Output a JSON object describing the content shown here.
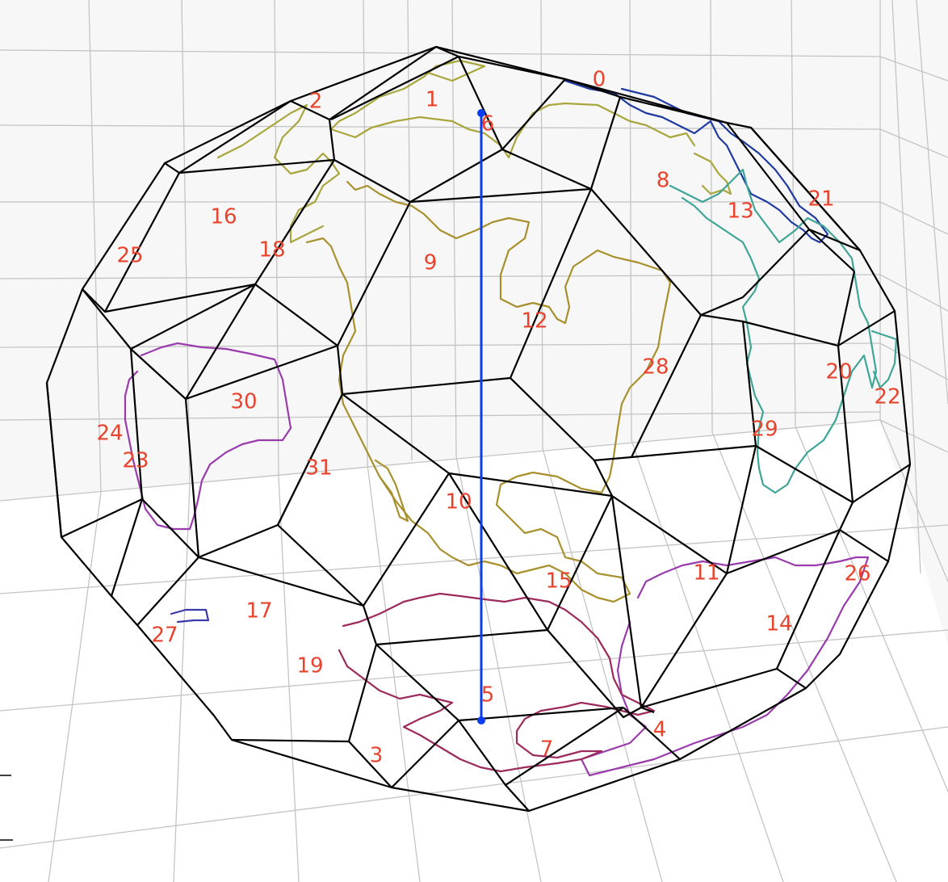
{
  "colors": {
    "cell_edges": "#000000",
    "axis_line": "#0a3cf0",
    "labels": "#e8432d",
    "grid": "#c4c4c4",
    "coast_north": "#a8a63c",
    "coast_americas": "#a8902c",
    "coast_europe": "#1f3aa0",
    "coast_africa": "#3fa596",
    "coast_oceania": "#9a3cac",
    "coast_antarctica": "#9c2a5c",
    "coast_small_island": "#3a3aac"
  },
  "cells": [
    {
      "id": "0",
      "label": "0"
    },
    {
      "id": "1",
      "label": "1"
    },
    {
      "id": "2",
      "label": "2"
    },
    {
      "id": "3",
      "label": "3"
    },
    {
      "id": "4",
      "label": "4"
    },
    {
      "id": "5",
      "label": "5"
    },
    {
      "id": "6",
      "label": "6"
    },
    {
      "id": "7",
      "label": "7"
    },
    {
      "id": "8",
      "label": "8"
    },
    {
      "id": "9",
      "label": "9"
    },
    {
      "id": "10",
      "label": "10"
    },
    {
      "id": "11",
      "label": "11"
    },
    {
      "id": "12",
      "label": "12"
    },
    {
      "id": "13",
      "label": "13"
    },
    {
      "id": "14",
      "label": "14"
    },
    {
      "id": "15",
      "label": "15"
    },
    {
      "id": "16",
      "label": "16"
    },
    {
      "id": "17",
      "label": "17"
    },
    {
      "id": "18",
      "label": "18"
    },
    {
      "id": "19",
      "label": "19"
    },
    {
      "id": "20",
      "label": "20"
    },
    {
      "id": "21",
      "label": "21"
    },
    {
      "id": "22",
      "label": "22"
    },
    {
      "id": "23",
      "label": "23"
    },
    {
      "id": "24",
      "label": "24"
    },
    {
      "id": "25",
      "label": "25"
    },
    {
      "id": "26",
      "label": "26"
    },
    {
      "id": "27",
      "label": "27"
    },
    {
      "id": "28",
      "label": "28"
    },
    {
      "id": "29",
      "label": "29"
    },
    {
      "id": "30",
      "label": "30"
    },
    {
      "id": "31",
      "label": "31"
    }
  ]
}
